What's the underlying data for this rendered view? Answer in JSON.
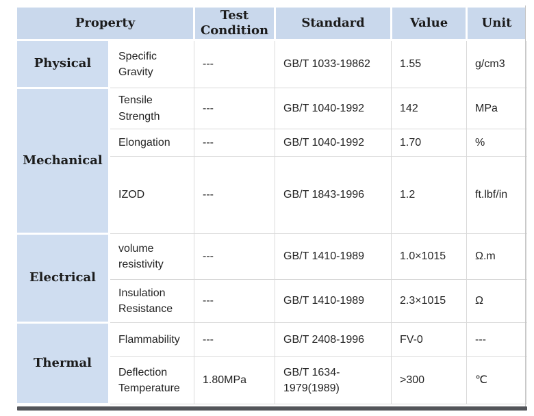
{
  "columns": {
    "property": "Property",
    "test_condition": "Test Condition",
    "standard": "Standard",
    "value": "Value",
    "unit": "Unit"
  },
  "sections": [
    {
      "category": "Physical",
      "rows": [
        {
          "property": "Specific Gravity",
          "condition": "---",
          "standard": "GB/T 1033-19862",
          "value": "1.55",
          "unit": "g/cm3"
        }
      ]
    },
    {
      "category": "Mechanical",
      "rows": [
        {
          "property": "Tensile Strength",
          "condition": "---",
          "standard": "GB/T 1040-1992",
          "value": "142",
          "unit": "MPa"
        },
        {
          "property": "Elongation",
          "condition": "---",
          "standard": "GB/T 1040-1992",
          "value": "1.70",
          "unit": "%"
        },
        {
          "property": "IZOD",
          "condition": "---",
          "standard": "GB/T 1843-1996",
          "value": "1.2",
          "unit": "ft.lbf/in"
        }
      ]
    },
    {
      "category": "Electrical",
      "rows": [
        {
          "property": "volume resistivity",
          "condition": "---",
          "standard": "GB/T 1410-1989",
          "value": "1.0×1015",
          "unit": "Ω.m"
        },
        {
          "property": "Insulation Resistance",
          "condition": "---",
          "standard": "GB/T 1410-1989",
          "value": "2.3×1015",
          "unit": "Ω"
        }
      ]
    },
    {
      "category": "Thermal",
      "rows": [
        {
          "property": "Flammability",
          "condition": "---",
          "standard": "GB/T 2408-1996",
          "value": "FV-0",
          "unit": "---"
        },
        {
          "property": "Deflection Temperature",
          "condition": "1.80MPa",
          "standard": "GB/T 1634-1979(1989)",
          "value": ">300",
          "unit": "℃"
        }
      ]
    }
  ],
  "colors": {
    "header_bg": "#c9d8ec",
    "category_bg": "#cfddf0",
    "grid": "#d9d9d9",
    "bottom_bar": "#53555a"
  }
}
